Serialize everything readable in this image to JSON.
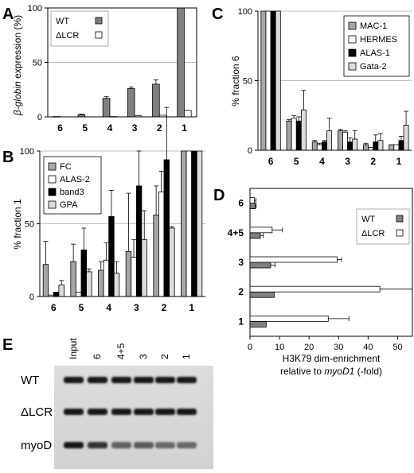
{
  "figure": {
    "panels": [
      "A",
      "B",
      "C",
      "D",
      "E"
    ]
  },
  "chart_data": [
    {
      "panel": "A",
      "type": "bar",
      "categories": [
        "6",
        "5",
        "4",
        "3",
        "2",
        "1"
      ],
      "ylabel_italic": "β-globin",
      "ylabel_rest": " expression (%)",
      "ylim": [
        0,
        100
      ],
      "yticks": [
        0,
        50,
        100
      ],
      "legend_placement": "top-left",
      "series": [
        {
          "name": "WT",
          "color": "#808080",
          "values": [
            0.3,
            2,
            17,
            26,
            30,
            100
          ],
          "errors": [
            0,
            0.5,
            1.5,
            1.5,
            4,
            0
          ]
        },
        {
          "name": "ΔLCR",
          "color": "#ffffff",
          "values": [
            0,
            0,
            0.3,
            1,
            1.5,
            6
          ],
          "errors": [
            0,
            0,
            0,
            0,
            0,
            0
          ]
        }
      ]
    },
    {
      "panel": "B",
      "type": "bar",
      "categories": [
        "6",
        "5",
        "4",
        "3",
        "2",
        "1"
      ],
      "ylabel": "% fraction 1",
      "ylim": [
        0,
        100
      ],
      "yticks": [
        0,
        50,
        100
      ],
      "legend_placement": "top-left",
      "series": [
        {
          "name": "FC",
          "color": "#a6a6a6",
          "values": [
            22,
            24,
            18,
            31,
            56,
            100
          ],
          "errors": [
            16,
            12,
            6,
            40,
            20,
            0
          ]
        },
        {
          "name": "ALAS-2",
          "color": "#ffffff",
          "values": [
            1,
            3,
            25,
            27,
            72,
            100
          ],
          "errors": [
            0,
            0,
            12,
            12,
            14,
            0
          ]
        },
        {
          "name": "band3",
          "color": "#000000",
          "values": [
            3,
            32,
            55,
            76,
            94,
            100
          ],
          "errors": [
            0,
            15,
            18,
            24,
            36,
            0
          ]
        },
        {
          "name": "GPA",
          "color": "#dcdcdc",
          "values": [
            8,
            17,
            16,
            39,
            47,
            100
          ],
          "errors": [
            3,
            2,
            8,
            20,
            1,
            0
          ]
        }
      ]
    },
    {
      "panel": "C",
      "type": "bar",
      "categories": [
        "6",
        "5",
        "4",
        "3",
        "2",
        "1"
      ],
      "ylabel": "% fraction 6",
      "ylim": [
        0,
        100
      ],
      "yticks": [
        0,
        50,
        100
      ],
      "legend_placement": "top-right",
      "series": [
        {
          "name": "MAC-1",
          "color": "#a6a6a6",
          "values": [
            100,
            21,
            6,
            14,
            4,
            4
          ],
          "errors": [
            0,
            1,
            1,
            1,
            1,
            0
          ]
        },
        {
          "name": "HERMES",
          "color": "#ffffff",
          "values": [
            100,
            23,
            4,
            13,
            2,
            4
          ],
          "errors": [
            0,
            2,
            1,
            1,
            0,
            0
          ]
        },
        {
          "name": "ALAS-1",
          "color": "#000000",
          "values": [
            100,
            21,
            6,
            6,
            6,
            7
          ],
          "errors": [
            0,
            3,
            1,
            3,
            5,
            3
          ]
        },
        {
          "name": "Gata-2",
          "color": "#dcdcdc",
          "values": [
            100,
            29,
            14,
            8,
            7,
            18
          ],
          "errors": [
            0,
            14,
            9,
            6,
            5,
            10
          ]
        }
      ]
    },
    {
      "panel": "D",
      "type": "bar",
      "orientation": "horizontal",
      "categories": [
        "6",
        "4+5",
        "3",
        "2",
        "1"
      ],
      "xlabel_line1": "H3K79 dim-enrichment",
      "xlabel_line2_plain": "relative to ",
      "xlabel_line2_italic": "myoD1",
      "xlabel_line2_suffix": " (-fold)",
      "xlim": [
        0,
        55
      ],
      "xticks": [
        0,
        10,
        20,
        30,
        40,
        50
      ],
      "legend_placement": "top-right",
      "series": [
        {
          "name": "WT",
          "color": "#808080",
          "values": [
            1.8,
            3.5,
            7,
            8.2,
            5.5
          ],
          "errors": [
            0.3,
            1,
            1.5,
            0,
            0
          ]
        },
        {
          "name": "ΔLCR",
          "color": "#ffffff",
          "values": [
            1.5,
            7.5,
            29.5,
            44,
            26.5
          ],
          "errors": [
            0.5,
            3.5,
            1.5,
            12,
            7
          ]
        }
      ]
    }
  ],
  "gel": {
    "panel": "E",
    "lanes": [
      "Input",
      "6",
      "4+5",
      "3",
      "2",
      "1"
    ],
    "rows": [
      {
        "label": "WT",
        "intensity": [
          1,
          1,
          1,
          1,
          1,
          1
        ]
      },
      {
        "label": "ΔLCR",
        "intensity": [
          1,
          1,
          1,
          1,
          1,
          1
        ]
      },
      {
        "label": "myoD",
        "intensity": [
          1,
          0.8,
          0.45,
          0.5,
          0.4,
          0.4
        ]
      }
    ]
  }
}
